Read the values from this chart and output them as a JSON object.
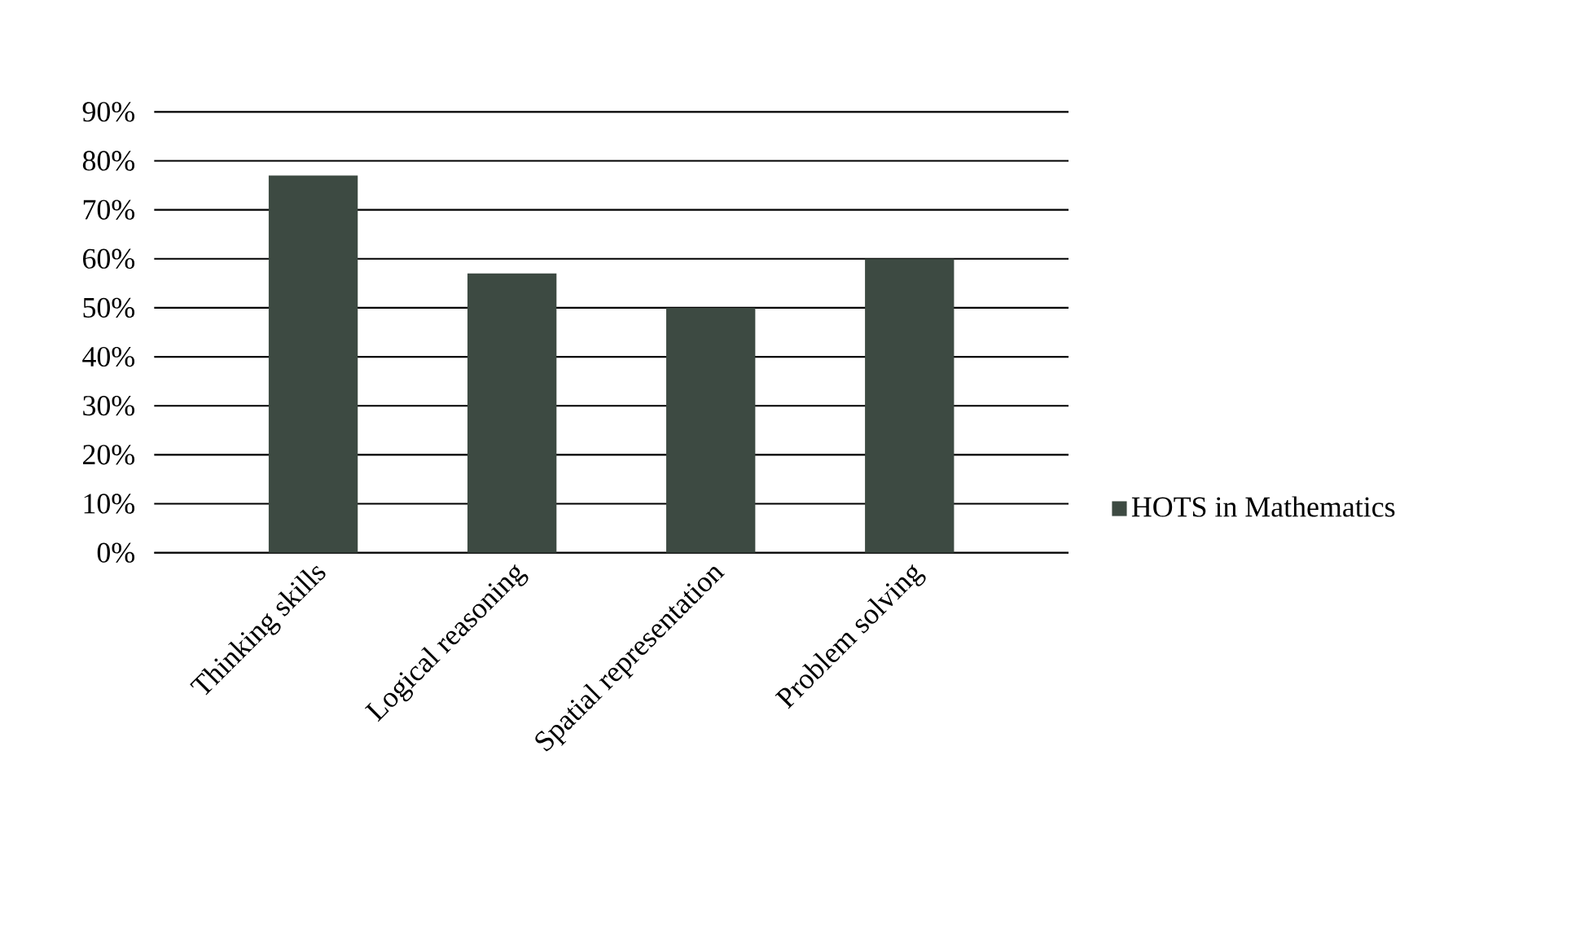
{
  "chart_data": {
    "type": "bar",
    "categories": [
      "Thinking skills",
      "Logical reasoning",
      "Spatial representation",
      "Problem solving"
    ],
    "series": [
      {
        "name": "HOTS in Mathematics",
        "color": "#3d4a42",
        "values": [
          77,
          57,
          50,
          60
        ]
      }
    ],
    "ylim": [
      0,
      90
    ],
    "yticks": [
      {
        "value": 0,
        "label": "0%"
      },
      {
        "value": 10,
        "label": "10%"
      },
      {
        "value": 20,
        "label": "20%"
      },
      {
        "value": 30,
        "label": "30%"
      },
      {
        "value": 40,
        "label": "40%"
      },
      {
        "value": 50,
        "label": "50%"
      },
      {
        "value": 60,
        "label": "60%"
      },
      {
        "value": 70,
        "label": "70%"
      },
      {
        "value": 80,
        "label": "80%"
      },
      {
        "value": 90,
        "label": "90%"
      }
    ],
    "grid": "y",
    "legend": "right"
  }
}
